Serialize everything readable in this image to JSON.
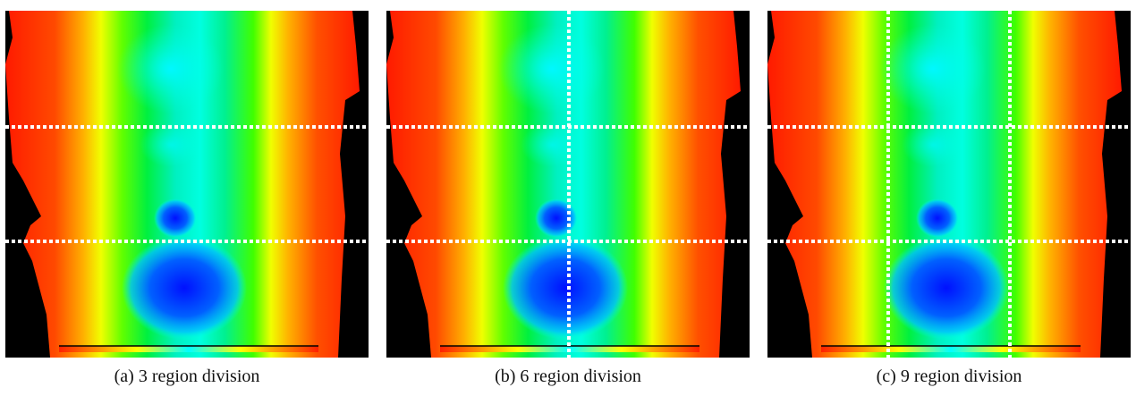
{
  "figures": [
    {
      "caption": "(a) 3 region division"
    },
    {
      "caption": "(b) 6 region division"
    },
    {
      "caption": "(c) 9 region division"
    }
  ]
}
